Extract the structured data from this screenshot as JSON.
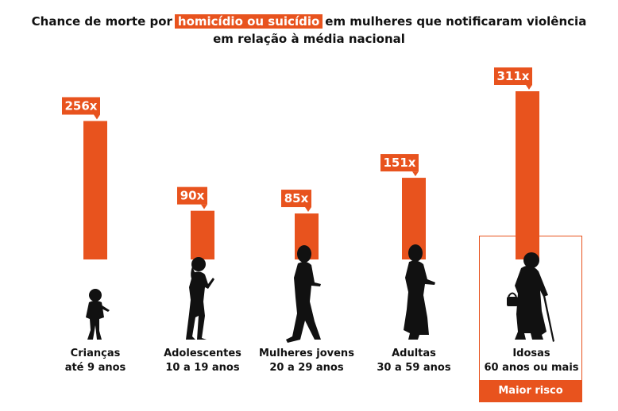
{
  "title": {
    "prefix": "Chance de morte por",
    "highlight": "homicídio ou suicídio",
    "suffix": "em mulheres que notificaram violência",
    "line2": "em relação à média nacional"
  },
  "highlight_label": "Maior risco",
  "colors": {
    "accent": "#e8531e",
    "silhouette": "#111111"
  },
  "chart_data": {
    "type": "bar",
    "categories": [
      {
        "name": "Crianças",
        "range": "até 9 anos",
        "icon": "child-silhouette-icon"
      },
      {
        "name": "Adolescentes",
        "range": "10 a 19 anos",
        "icon": "teen-silhouette-icon"
      },
      {
        "name": "Mulheres jovens",
        "range": "20 a 29 anos",
        "icon": "young-woman-silhouette-icon"
      },
      {
        "name": "Adultas",
        "range": "30 a 59 anos",
        "icon": "adult-woman-silhouette-icon"
      },
      {
        "name": "Idosas",
        "range": "60 anos ou mais",
        "icon": "elderly-woman-silhouette-icon"
      }
    ],
    "values": [
      256,
      90,
      85,
      151,
      311
    ],
    "value_labels": [
      "256x",
      "90x",
      "85x",
      "151x",
      "311x"
    ],
    "highlighted_index": 4,
    "ylim": [
      0,
      311
    ],
    "grid": false,
    "legend": "none"
  }
}
